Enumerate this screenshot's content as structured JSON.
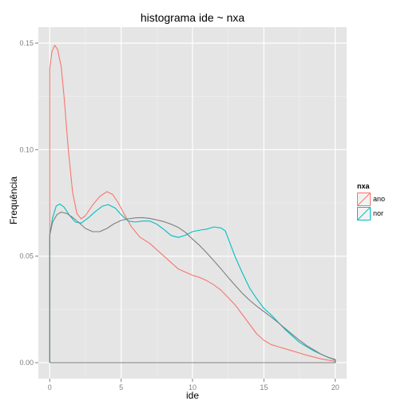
{
  "chart_data": {
    "type": "line",
    "title": "histograma ide ~ nxa",
    "xlabel": "ide",
    "ylabel": "Frequência",
    "xlim": [
      -0.8,
      20.8
    ],
    "ylim": [
      -0.0075,
      0.1575
    ],
    "x_ticks": [
      0,
      5,
      10,
      15,
      20
    ],
    "x_tick_labels": [
      "0",
      "5",
      "10",
      "15",
      "20"
    ],
    "y_ticks": [
      0.0,
      0.05,
      0.1,
      0.15
    ],
    "y_tick_labels": [
      "0.00",
      "0.05",
      "0.10",
      "0.15"
    ],
    "grid": true,
    "legend": {
      "title": "nxa",
      "position": "right",
      "entries": [
        {
          "label": "ano",
          "color": "#F8766D"
        },
        {
          "label": "nor",
          "color": "#00BFC4"
        }
      ]
    },
    "series": [
      {
        "name": "ano",
        "color": "#F8766D",
        "points": [
          [
            0.0,
            0.0
          ],
          [
            0.0,
            0.138
          ],
          [
            0.15,
            0.146
          ],
          [
            0.35,
            0.149
          ],
          [
            0.55,
            0.147
          ],
          [
            0.8,
            0.139
          ],
          [
            1.0,
            0.125
          ],
          [
            1.3,
            0.1
          ],
          [
            1.6,
            0.08
          ],
          [
            1.9,
            0.07
          ],
          [
            2.2,
            0.0675
          ],
          [
            2.5,
            0.069
          ],
          [
            3.0,
            0.074
          ],
          [
            3.5,
            0.078
          ],
          [
            4.0,
            0.0803
          ],
          [
            4.4,
            0.079
          ],
          [
            4.8,
            0.075
          ],
          [
            5.2,
            0.07
          ],
          [
            5.7,
            0.064
          ],
          [
            6.3,
            0.059
          ],
          [
            7.0,
            0.056
          ],
          [
            7.5,
            0.053
          ],
          [
            8.0,
            0.05
          ],
          [
            8.5,
            0.047
          ],
          [
            9.0,
            0.044
          ],
          [
            9.5,
            0.0425
          ],
          [
            10.0,
            0.041
          ],
          [
            10.5,
            0.04
          ],
          [
            11.0,
            0.0385
          ],
          [
            11.5,
            0.0365
          ],
          [
            12.0,
            0.034
          ],
          [
            12.5,
            0.0305
          ],
          [
            13.0,
            0.027
          ],
          [
            13.5,
            0.0225
          ],
          [
            14.0,
            0.018
          ],
          [
            14.5,
            0.0135
          ],
          [
            15.0,
            0.0105
          ],
          [
            15.5,
            0.0085
          ],
          [
            16.0,
            0.0075
          ],
          [
            17.0,
            0.0055
          ],
          [
            18.0,
            0.0035
          ],
          [
            19.0,
            0.0018
          ],
          [
            20.0,
            0.0006
          ],
          [
            20.0,
            0.0
          ],
          [
            0.0,
            0.0
          ]
        ]
      },
      {
        "name": "nor",
        "color": "#00BFC4",
        "points": [
          [
            0.0,
            0.0
          ],
          [
            0.0,
            0.06
          ],
          [
            0.2,
            0.068
          ],
          [
            0.45,
            0.0735
          ],
          [
            0.7,
            0.0745
          ],
          [
            1.0,
            0.073
          ],
          [
            1.4,
            0.069
          ],
          [
            1.8,
            0.066
          ],
          [
            2.2,
            0.0655
          ],
          [
            2.7,
            0.068
          ],
          [
            3.2,
            0.071
          ],
          [
            3.7,
            0.0735
          ],
          [
            4.1,
            0.0742
          ],
          [
            4.6,
            0.0725
          ],
          [
            5.0,
            0.0695
          ],
          [
            5.5,
            0.0665
          ],
          [
            6.0,
            0.066
          ],
          [
            6.5,
            0.0665
          ],
          [
            7.0,
            0.0665
          ],
          [
            7.5,
            0.065
          ],
          [
            8.0,
            0.0625
          ],
          [
            8.5,
            0.0597
          ],
          [
            9.0,
            0.0588
          ],
          [
            9.5,
            0.0598
          ],
          [
            10.0,
            0.0615
          ],
          [
            10.5,
            0.0622
          ],
          [
            11.0,
            0.0627
          ],
          [
            11.5,
            0.0637
          ],
          [
            12.0,
            0.0632
          ],
          [
            12.3,
            0.0618
          ],
          [
            12.6,
            0.0565
          ],
          [
            13.0,
            0.0495
          ],
          [
            13.5,
            0.042
          ],
          [
            14.0,
            0.035
          ],
          [
            14.5,
            0.03
          ],
          [
            15.0,
            0.0255
          ],
          [
            15.5,
            0.0225
          ],
          [
            16.0,
            0.019
          ],
          [
            16.5,
            0.0155
          ],
          [
            17.0,
            0.0125
          ],
          [
            17.5,
            0.0095
          ],
          [
            18.0,
            0.0075
          ],
          [
            18.5,
            0.0055
          ],
          [
            19.0,
            0.004
          ],
          [
            19.5,
            0.0025
          ],
          [
            20.0,
            0.0012
          ],
          [
            20.0,
            0.0
          ],
          [
            0.0,
            0.0
          ]
        ]
      },
      {
        "name": "",
        "color": "#7F7F7F",
        "points": [
          [
            0.0,
            0.0
          ],
          [
            0.0,
            0.06
          ],
          [
            0.2,
            0.066
          ],
          [
            0.5,
            0.0695
          ],
          [
            0.8,
            0.0707
          ],
          [
            1.2,
            0.07
          ],
          [
            1.6,
            0.0682
          ],
          [
            2.0,
            0.066
          ],
          [
            2.5,
            0.063
          ],
          [
            3.0,
            0.0615
          ],
          [
            3.5,
            0.0615
          ],
          [
            4.0,
            0.063
          ],
          [
            4.5,
            0.0652
          ],
          [
            5.0,
            0.0668
          ],
          [
            5.5,
            0.0675
          ],
          [
            6.0,
            0.068
          ],
          [
            6.5,
            0.0681
          ],
          [
            7.0,
            0.0677
          ],
          [
            7.5,
            0.067
          ],
          [
            8.0,
            0.0662
          ],
          [
            8.5,
            0.065
          ],
          [
            9.0,
            0.0635
          ],
          [
            9.5,
            0.0612
          ],
          [
            10.0,
            0.058
          ],
          [
            10.5,
            0.055
          ],
          [
            11.0,
            0.0515
          ],
          [
            11.5,
            0.0478
          ],
          [
            12.0,
            0.044
          ],
          [
            12.5,
            0.04
          ],
          [
            13.0,
            0.0362
          ],
          [
            13.5,
            0.0325
          ],
          [
            14.0,
            0.0293
          ],
          [
            14.5,
            0.0265
          ],
          [
            15.0,
            0.024
          ],
          [
            15.5,
            0.0215
          ],
          [
            16.0,
            0.0188
          ],
          [
            16.5,
            0.016
          ],
          [
            17.0,
            0.0132
          ],
          [
            17.5,
            0.0105
          ],
          [
            18.0,
            0.008
          ],
          [
            18.5,
            0.006
          ],
          [
            19.0,
            0.004
          ],
          [
            19.5,
            0.0025
          ],
          [
            20.0,
            0.0015
          ],
          [
            20.0,
            0.0
          ],
          [
            0.0,
            0.0
          ]
        ]
      }
    ]
  }
}
